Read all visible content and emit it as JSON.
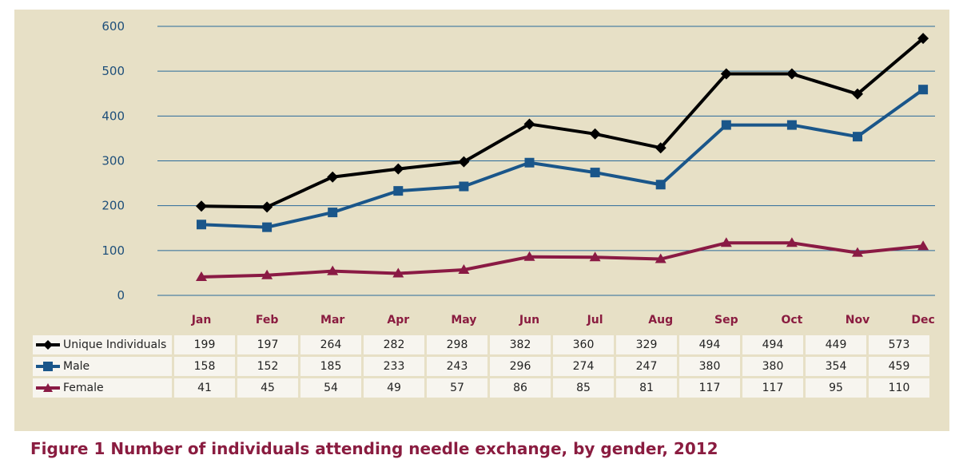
{
  "chart_data": {
    "type": "line",
    "title": "Figure 1  Number of individuals attending needle exchange, by gender, 2012",
    "categories": [
      "Jan",
      "Feb",
      "Mar",
      "Apr",
      "May",
      "Jun",
      "Jul",
      "Aug",
      "Sep",
      "Oct",
      "Nov",
      "Dec"
    ],
    "ylim": [
      0,
      600
    ],
    "yticks": [
      0,
      100,
      200,
      300,
      400,
      500,
      600
    ],
    "grid": true,
    "legend": "table-bottom",
    "series": [
      {
        "name": "Unique Individuals",
        "color": "#000000",
        "marker": "diamond",
        "values": [
          199,
          197,
          264,
          282,
          298,
          382,
          360,
          329,
          494,
          494,
          449,
          573
        ]
      },
      {
        "name": "Male",
        "color": "#1a568a",
        "marker": "square",
        "values": [
          158,
          152,
          185,
          233,
          243,
          296,
          274,
          247,
          380,
          380,
          354,
          459
        ]
      },
      {
        "name": "Female",
        "color": "#8a1a44",
        "marker": "triangle",
        "values": [
          41,
          45,
          54,
          49,
          57,
          86,
          85,
          81,
          117,
          117,
          95,
          110
        ]
      }
    ]
  }
}
